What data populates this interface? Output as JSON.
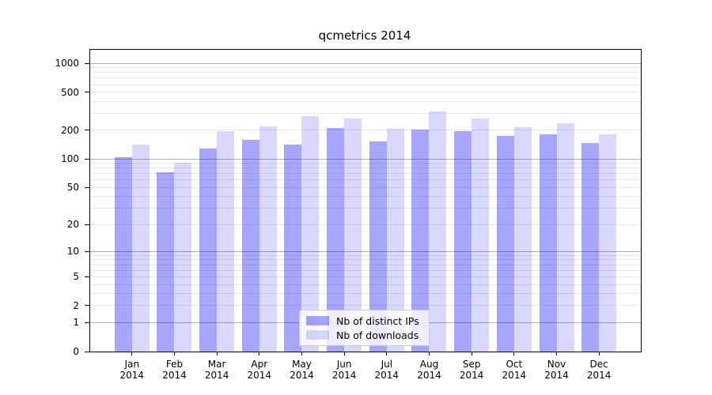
{
  "chart_data": {
    "type": "bar",
    "title": "qcmetrics 2014",
    "categories": [
      "Jan",
      "Feb",
      "Mar",
      "Apr",
      "May",
      "Jun",
      "Jul",
      "Aug",
      "Sep",
      "Oct",
      "Nov",
      "Dec"
    ],
    "year_label": "2014",
    "series": [
      {
        "name": "Nb of distinct IPs",
        "color": "rgba(0,0,255,0.35)",
        "color_on_white": "#a6a6ff",
        "values": [
          105,
          73,
          130,
          159,
          143,
          213,
          152,
          205,
          195,
          174,
          180,
          147
        ]
      },
      {
        "name": "Nb of downloads",
        "color": "rgba(0,0,255,0.15)",
        "color_on_white": "#d9d9ff",
        "values": [
          141,
          91,
          195,
          220,
          280,
          265,
          208,
          313,
          265,
          216,
          238,
          181
        ]
      }
    ],
    "xlabel": "",
    "ylabel": "",
    "y_scale": "log10(1+x)",
    "y_ticks": [
      0,
      1,
      2,
      5,
      10,
      20,
      50,
      100,
      200,
      500,
      1000
    ],
    "ylim": [
      0,
      1390
    ],
    "grid": true,
    "grid_major_color": "#b0b0b0",
    "grid_minor_color": "#e8e8e8",
    "legend_position": "lower center"
  }
}
